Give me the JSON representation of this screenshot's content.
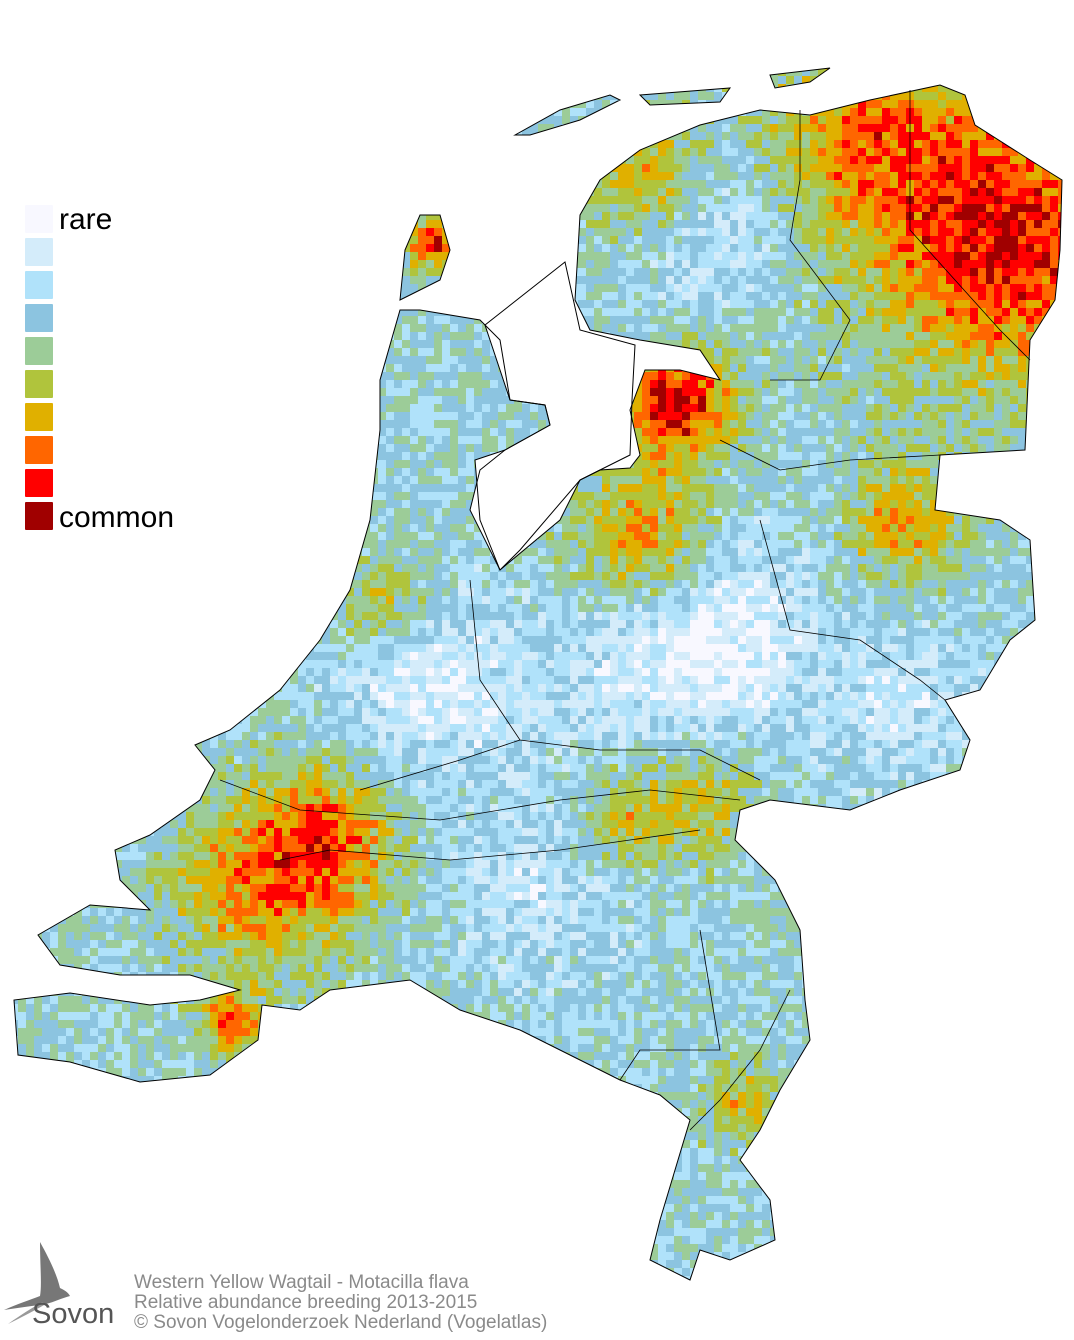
{
  "legend": {
    "top_label": "rare",
    "bottom_label": "common",
    "colors": [
      "#f8f8ff",
      "#d4ecfa",
      "#b0e2fa",
      "#8cc4e0",
      "#9ccc98",
      "#b0c43c",
      "#e0b000",
      "#ff6600",
      "#ff0000",
      "#a00000"
    ]
  },
  "caption": {
    "species": "Western Yellow Wagtail - Motacilla flava",
    "subtitle": "Relative abundance breeding 2013-2015",
    "copyright": "© Sovon Vogelonderzoek Nederland (Vogelatlas)"
  },
  "logo": {
    "text": "Sovon",
    "icon": "swallow-icon"
  },
  "map": {
    "region": "Netherlands",
    "border_color": "#000000"
  }
}
